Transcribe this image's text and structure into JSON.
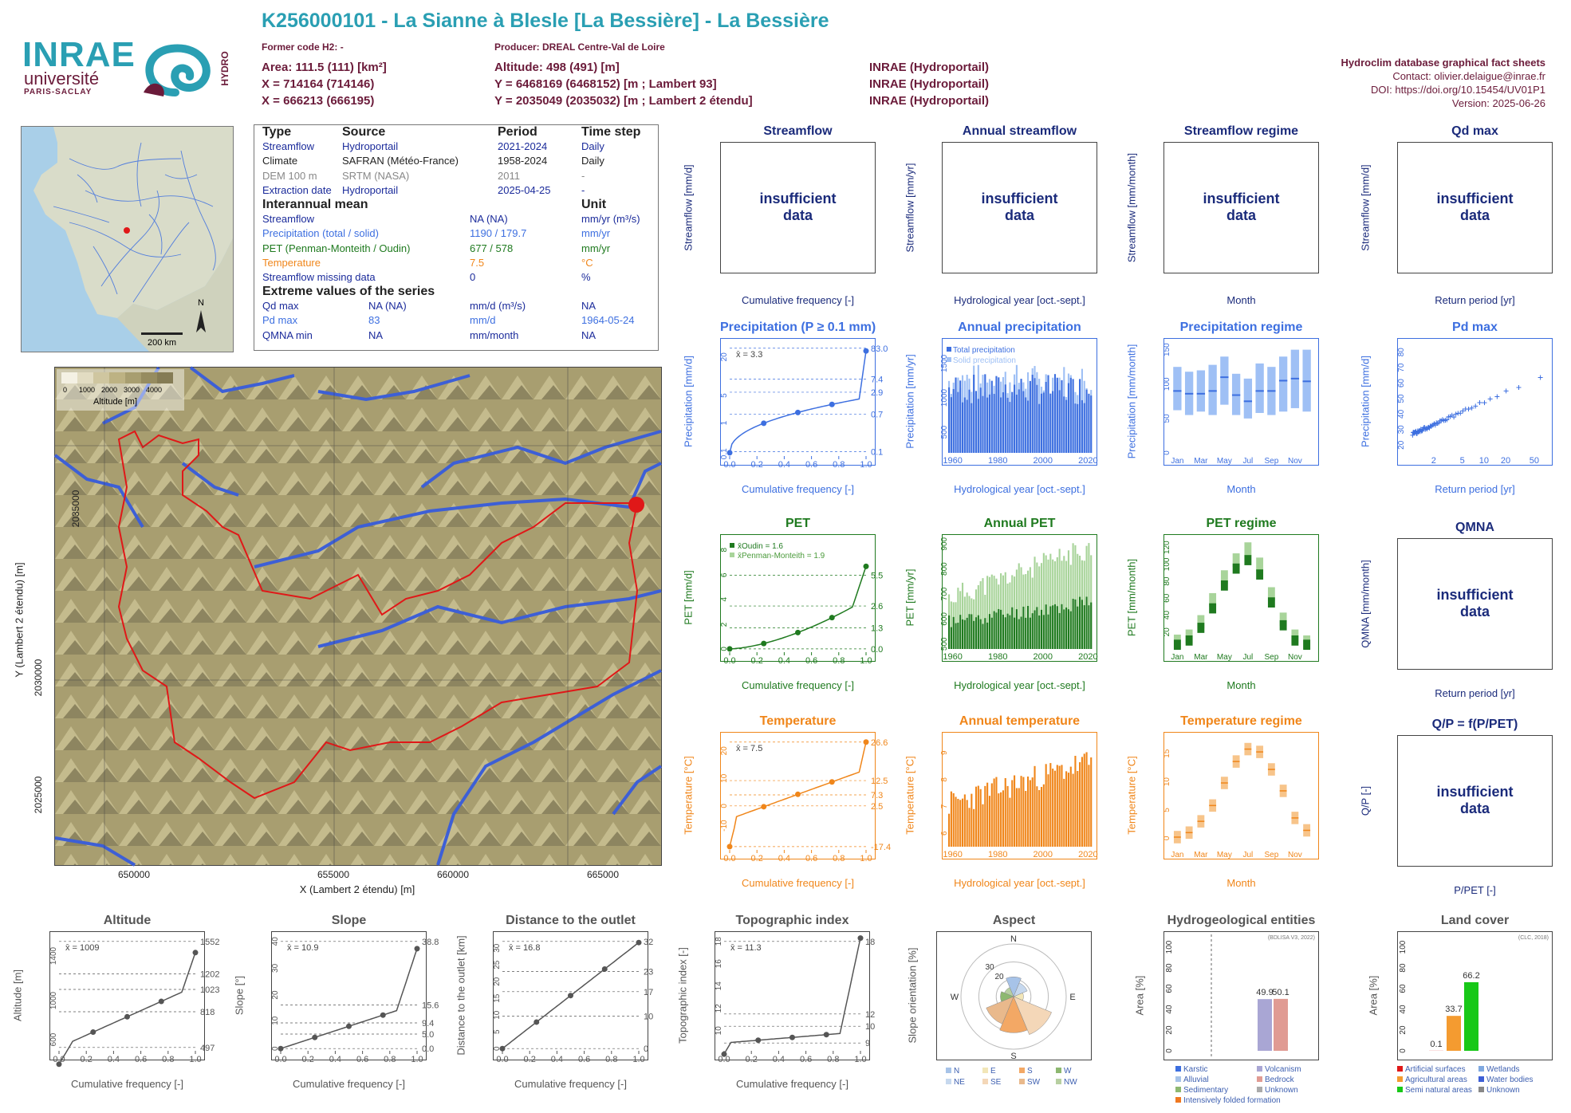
{
  "header": {
    "title": "K256000101 - La Sianne à Blesle [La Bessière] - La Bessière",
    "former_code": "Former code H2: -",
    "producer": "Producer: DREAL Centre-Val de Loire",
    "area": "Area: 111.5 (111) [km²]",
    "altitude": "Altitude: 498 (491) [m]",
    "x93": "X = 714164 (714146)",
    "y93": "Y = 6468169 (6468152) [m ; Lambert 93]",
    "x2e": "X = 666213 (666195)",
    "y2e": "Y = 2035049 (2035032) [m ; Lambert 2 étendu]",
    "src1": "INRAE (Hydroportail)",
    "src2": "INRAE (Hydroportail)",
    "src3": "INRAE (Hydroportail)"
  },
  "credits": {
    "line1": "Hydroclim database graphical fact sheets",
    "line2": "Contact: olivier.delaigue@inrae.fr",
    "line3": "DOI: https://doi.org/10.15454/UV01P1",
    "line4": "Version: 2025-06-26"
  },
  "logos": {
    "inrae": "INRAE",
    "univ": "université",
    "ps": "PARIS-SACLAY",
    "hydro": "HYDRO"
  },
  "minimap": {
    "scale": "200 km",
    "north": "N"
  },
  "info": {
    "h_type": "Type",
    "h_source": "Source",
    "h_period": "Period",
    "h_step": "Time step",
    "rows": [
      {
        "type": "Streamflow",
        "source": "Hydroportail",
        "period": "2021-2024",
        "step": "Daily",
        "color": "#1b2b9b"
      },
      {
        "type": "Climate",
        "source": "SAFRAN (Météo-France)",
        "period": "1958-2024",
        "step": "Daily",
        "color": "#222222"
      },
      {
        "type": "DEM 100 m",
        "source": "SRTM (NASA)",
        "period": "2011",
        "step": "-",
        "color": "#888888"
      },
      {
        "type": "Extraction date",
        "source": "Hydroportail",
        "period": "2025-04-25",
        "step": "-",
        "color": "#1b2b9b"
      }
    ],
    "h_mean": "Interannual mean",
    "h_unit": "Unit",
    "means": [
      {
        "label": "Streamflow",
        "value": "NA (NA)",
        "unit": "mm/yr (m³/s)",
        "color": "#1b2b9b"
      },
      {
        "label": "Precipitation (total / solid)",
        "value": "1190 / 179.7",
        "unit": "mm/yr",
        "color": "#3d6fe0"
      },
      {
        "label": "PET (Penman-Monteith / Oudin)",
        "value": "677 / 578",
        "unit": "mm/yr",
        "color": "#1f7a1f"
      },
      {
        "label": "Temperature",
        "value": "7.5",
        "unit": "°C",
        "color": "#f0861a"
      },
      {
        "label": "Streamflow missing data",
        "value": "0",
        "unit": "%",
        "color": "#1b2b9b"
      }
    ],
    "h_ext": "Extreme values of the series",
    "ext": [
      {
        "label": "Qd max",
        "value": "NA (NA)",
        "unit": "mm/d (m³/s)",
        "date": "NA",
        "color": "#1b2b9b"
      },
      {
        "label": "Pd max",
        "value": "83",
        "unit": "mm/d",
        "date": "1964-05-24",
        "color": "#3d6fe0"
      },
      {
        "label": "QMNA min",
        "value": "NA",
        "unit": "mm/month",
        "date": "NA",
        "color": "#1b2b9b"
      }
    ]
  },
  "map": {
    "legend_ticks": [
      "0",
      "1000",
      "2000",
      "3000",
      "4000"
    ],
    "legend_title": "Altitude [m]",
    "xticks": [
      "650000",
      "655000",
      "660000",
      "665000"
    ],
    "yticks": [
      "2035000",
      "2030000",
      "2025000"
    ],
    "xlabel": "X (Lambert 2 étendu) [m]",
    "ylabel": "Y (Lambert 2 étendu) [m]"
  },
  "insufficient": "insufficient data",
  "flow_panels": [
    {
      "title": "Streamflow",
      "ylabel": "Streamflow [mm/d]",
      "xlabel": "Cumulative frequency [-]"
    },
    {
      "title": "Annual streamflow",
      "ylabel": "Streamflow [mm/yr]",
      "xlabel": "Hydrological year [oct.-sept.]"
    },
    {
      "title": "Streamflow regime",
      "ylabel": "Streamflow [mm/month]",
      "xlabel": "Month"
    },
    {
      "title": "Qd max",
      "ylabel": "Streamflow [mm/d]",
      "xlabel": "Return period [yr]"
    }
  ],
  "qmna": {
    "title": "QMNA",
    "ylabel": "QMNA [mm/month]",
    "xlabel": "Return period [yr]"
  },
  "qp": {
    "title": "Q/P = f(P/PET)",
    "ylabel": "Q/P [-]",
    "xlabel": "P/PET [-]"
  },
  "colors": {
    "precip": "#3d6fe0",
    "precip_light": "#9fc0f5",
    "pet": "#1f7a1f",
    "pet_light": "#a8d49a",
    "temp": "#f0861a",
    "temp_light": "#f7c48a",
    "navy": "#1b2b7b",
    "grey": "#555555"
  },
  "chart_data": [
    {
      "id": "precip_cdf",
      "type": "line",
      "title": "Precipitation (P ≥ 0.1 mm)",
      "ylabel": "Precipitation [mm/d]",
      "xlabel": "Cumulative frequency [-]",
      "mean": "x̄ = 3.3",
      "right_ticks": [
        "83.0",
        "7.4",
        "2.9",
        "0.7",
        "0.1"
      ],
      "xticks": [
        "0.0",
        "0.2",
        "0.4",
        "0.6",
        "0.8",
        "1.0"
      ],
      "yticks": [
        "0.1",
        "1",
        "5",
        "20"
      ]
    },
    {
      "id": "annual_precip",
      "type": "bar",
      "title": "Annual precipitation",
      "ylabel": "Precipitation [mm/yr]",
      "xlabel": "Hydrological year [oct.-sept.]",
      "legend": [
        "Total precipitation",
        "Solid precipitation"
      ],
      "xticks": [
        "1960",
        "1980",
        "2000",
        "2020"
      ],
      "yticks": [
        "500",
        "1000",
        "1500"
      ],
      "ylim": [
        200,
        1800
      ]
    },
    {
      "id": "precip_regime",
      "type": "bar",
      "title": "Precipitation regime",
      "ylabel": "Precipitation [mm/month]",
      "xlabel": "Month",
      "categories": [
        "Jan",
        "Feb",
        "Mar",
        "Apr",
        "May",
        "Jun",
        "Jul",
        "Aug",
        "Sep",
        "Oct",
        "Nov",
        "Dec"
      ],
      "xticks": [
        "Jan",
        "Mar",
        "May",
        "Jul",
        "Sep",
        "Nov"
      ],
      "median": [
        90,
        86,
        86,
        90,
        110,
        84,
        75,
        90,
        90,
        105,
        108,
        104
      ],
      "low": [
        62,
        55,
        60,
        55,
        70,
        55,
        50,
        58,
        55,
        60,
        65,
        60
      ],
      "high": [
        125,
        118,
        120,
        128,
        140,
        115,
        108,
        130,
        125,
        140,
        150,
        150
      ],
      "yticks": [
        "0",
        "50",
        "100",
        "150"
      ],
      "ylim": [
        0,
        160
      ]
    },
    {
      "id": "pd_max",
      "type": "scatter",
      "title": "Pd max",
      "ylabel": "Precipitation [mm/d]",
      "xlabel": "Return period [yr]",
      "xticks": [
        "2",
        "5",
        "10",
        "20",
        "50"
      ],
      "yticks": [
        "20",
        "30",
        "40",
        "50",
        "60",
        "70",
        "80"
      ]
    },
    {
      "id": "pet_cdf",
      "type": "line",
      "title": "PET",
      "ylabel": "PET [mm/d]",
      "xlabel": "Cumulative frequency [-]",
      "legend": [
        "x̄Oudin = 1.6",
        "x̄Penman-Monteith = 1.9"
      ],
      "right_ticks": [
        "5.5",
        "2.6",
        "1.3",
        "0.0"
      ],
      "xticks": [
        "0.0",
        "0.2",
        "0.4",
        "0.6",
        "0.8",
        "1.0"
      ],
      "yticks": [
        "0",
        "2",
        "4",
        "6",
        "8"
      ]
    },
    {
      "id": "annual_pet",
      "type": "bar",
      "title": "Annual PET",
      "ylabel": "PET [mm/yr]",
      "xlabel": "Hydrological year [oct.-sept.]",
      "xticks": [
        "1960",
        "1980",
        "2000",
        "2020"
      ],
      "yticks": [
        "500",
        "600",
        "700",
        "800",
        "900"
      ],
      "ylim": [
        480,
        920
      ]
    },
    {
      "id": "pet_regime",
      "type": "bar",
      "title": "PET regime",
      "ylabel": "PET [mm/month]",
      "xlabel": "Month",
      "categories": [
        "Jan",
        "Feb",
        "Mar",
        "Apr",
        "May",
        "Jun",
        "Jul",
        "Aug",
        "Sep",
        "Oct",
        "Nov",
        "Dec"
      ],
      "xticks": [
        "Jan",
        "Mar",
        "May",
        "Jul",
        "Sep",
        "Nov"
      ],
      "oudin": [
        5,
        10,
        25,
        48,
        75,
        95,
        105,
        88,
        55,
        28,
        10,
        5
      ],
      "pm": [
        9,
        15,
        32,
        58,
        85,
        105,
        118,
        100,
        65,
        35,
        15,
        8
      ],
      "yticks": [
        "20",
        "40",
        "60",
        "80",
        "100",
        "120"
      ],
      "ylim": [
        0,
        130
      ]
    },
    {
      "id": "temp_cdf",
      "type": "line",
      "title": "Temperature",
      "ylabel": "Temperature [°C]",
      "xlabel": "Cumulative frequency [-]",
      "mean": "x̄ = 7.5",
      "right_ticks": [
        "26.6",
        "12.5",
        "7.3",
        "2.5",
        "-17.4"
      ],
      "xticks": [
        "0.0",
        "0.2",
        "0.4",
        "0.6",
        "0.8",
        "1.0"
      ],
      "yticks": [
        "-10",
        "0",
        "10",
        "20"
      ]
    },
    {
      "id": "annual_temp",
      "type": "bar",
      "title": "Annual temperature",
      "ylabel": "Temperature [°C]",
      "xlabel": "Hydrological year [oct.-sept.]",
      "xticks": [
        "1960",
        "1980",
        "2000",
        "2020"
      ],
      "yticks": [
        "6",
        "7",
        "8",
        "9"
      ],
      "ylim": [
        5.5,
        9.6
      ]
    },
    {
      "id": "temp_regime",
      "type": "bar",
      "title": "Temperature regime",
      "ylabel": "Temperature [°C]",
      "xlabel": "Month",
      "categories": [
        "Jan",
        "Feb",
        "Mar",
        "Apr",
        "May",
        "Jun",
        "Jul",
        "Aug",
        "Sep",
        "Oct",
        "Nov",
        "Dec"
      ],
      "xticks": [
        "Jan",
        "Mar",
        "May",
        "Jul",
        "Sep",
        "Nov"
      ],
      "values": [
        0.2,
        1.0,
        3.0,
        5.8,
        9.8,
        13.6,
        15.8,
        15.3,
        12.2,
        8.4,
        3.6,
        1.4
      ],
      "yticks": [
        "0",
        "5",
        "10",
        "15"
      ],
      "ylim": [
        -1.5,
        18
      ]
    },
    {
      "id": "altitude",
      "type": "line",
      "title": "Altitude",
      "ylabel": "Altitude [m]",
      "xlabel": "Cumulative frequency [-]",
      "mean": "x̄ = 1009",
      "right_ticks": [
        "1552",
        "1202",
        "1023",
        "818",
        "497"
      ],
      "xticks": [
        "0.0",
        "0.2",
        "0.4",
        "0.6",
        "0.8",
        "1.0"
      ],
      "yticks": [
        "600",
        "1000",
        "1400"
      ],
      "ylim": [
        497,
        1552
      ]
    },
    {
      "id": "slope",
      "type": "line",
      "title": "Slope",
      "ylabel": "Slope [°]",
      "xlabel": "Cumulative frequency [-]",
      "mean": "x̄ = 10.9",
      "right_ticks": [
        "38.8",
        "15.6",
        "9.4",
        "5.0",
        "0.0"
      ],
      "xticks": [
        "0.0",
        "0.2",
        "0.4",
        "0.6",
        "0.8",
        "1.0"
      ],
      "yticks": [
        "0",
        "10",
        "20",
        "30",
        "40"
      ],
      "ylim": [
        0,
        40
      ]
    },
    {
      "id": "distance",
      "type": "line",
      "title": "Distance to the outlet",
      "ylabel": "Distance to the outlet [km]",
      "xlabel": "Cumulative frequency [-]",
      "mean": "x̄ = 16.8",
      "right_ticks": [
        "32",
        "23",
        "17",
        "10",
        "0"
      ],
      "xticks": [
        "0.0",
        "0.2",
        "0.4",
        "0.6",
        "0.8",
        "1.0"
      ],
      "yticks": [
        "0",
        "5",
        "10",
        "15",
        "20",
        "25",
        "30"
      ],
      "ylim": [
        0,
        33
      ]
    },
    {
      "id": "topo",
      "type": "line",
      "title": "Topographic index",
      "ylabel": "Topographic index [-]",
      "xlabel": "Cumulative frequency [-]",
      "mean": "x̄ = 11.3",
      "right_ticks": [
        "18",
        "12",
        "10",
        "9"
      ],
      "xticks": [
        "0.0",
        "0.2",
        "0.4",
        "0.6",
        "0.8",
        "1.0"
      ],
      "yticks": [
        "10",
        "12",
        "14",
        "16",
        "18"
      ],
      "ylim": [
        8.5,
        18.5
      ]
    },
    {
      "id": "aspect",
      "type": "pie",
      "title": "Aspect",
      "ylabel": "Slope orientation [%]",
      "rings": [
        "20",
        "30"
      ],
      "dirs": [
        "N",
        "E",
        "S",
        "W"
      ],
      "legend": [
        "N",
        "E",
        "S",
        "W",
        "NE",
        "SE",
        "SW",
        "NW"
      ]
    },
    {
      "id": "hydrogeo",
      "type": "bar",
      "title": "Hydrogeological entities",
      "ylabel": "Area [%]",
      "source": "(BDLISA V3, 2022)",
      "values": [
        49.9,
        50.1
      ],
      "labels": [
        "49.9",
        "50.1"
      ],
      "yticks": [
        "0",
        "20",
        "40",
        "60",
        "80",
        "100"
      ],
      "legend": [
        "Karstic",
        "Volcanism",
        "Alluvial",
        "Bedrock",
        "Sedimentary",
        "Unknown",
        "Intensively folded formation"
      ]
    },
    {
      "id": "landcover",
      "type": "bar",
      "title": "Land cover",
      "ylabel": "Area [%]",
      "source": "(CLC, 2018)",
      "values": [
        0.1,
        33.7,
        66.2
      ],
      "labels": [
        "0.1",
        "33.7",
        "66.2"
      ],
      "yticks": [
        "0",
        "20",
        "40",
        "60",
        "80",
        "100"
      ],
      "legend": [
        "Artificial surfaces",
        "Wetlands",
        "Agricultural areas",
        "Water bodies",
        "Semi natural areas",
        "Unknown"
      ]
    }
  ]
}
